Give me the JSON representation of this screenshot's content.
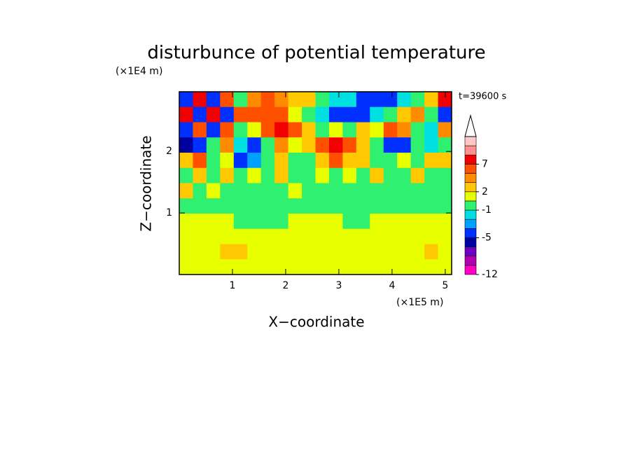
{
  "chart_data": {
    "type": "contourf",
    "title": "disturbunce of potential temperature",
    "annotation": "t=39600 s",
    "xlabel": "X−coordinate",
    "ylabel": "Z−coordinate",
    "xunit": "(×1E5 m)",
    "yunit": "(×1E4 m)",
    "xlim": [
      0,
      5.12
    ],
    "ylim": [
      0,
      2.97
    ],
    "xticks": [
      1,
      2,
      3,
      4,
      5
    ],
    "yticks": [
      1,
      2
    ],
    "levels": [
      -12,
      -10,
      -8,
      -6,
      -5,
      -3,
      -2,
      -1,
      1,
      2,
      4,
      5,
      7,
      9,
      11,
      13
    ],
    "colors": [
      "#ff00c0",
      "#b000b0",
      "#7000c0",
      "#0000a0",
      "#0030ff",
      "#00a0ff",
      "#00e0e0",
      "#30f070",
      "#e8ff00",
      "#ffc800",
      "#ff8c00",
      "#ff5000",
      "#f00000",
      "#ff9090",
      "#ffc8c8"
    ],
    "colorbar_ticks": [
      -12,
      -5,
      -1,
      2,
      7
    ],
    "z": [
      [
        -5,
        7,
        -5,
        5,
        0,
        4,
        6,
        4,
        3,
        2,
        0,
        -2,
        -2,
        -5,
        -5,
        -5,
        -2,
        0,
        2,
        7
      ],
      [
        7,
        -4,
        7,
        -4,
        5,
        6,
        6,
        6,
        1,
        0,
        -2,
        -5,
        -5,
        -5,
        -2,
        0,
        2,
        4,
        0,
        -5
      ],
      [
        -5,
        6,
        -5,
        5,
        0,
        1,
        6,
        7,
        5,
        2,
        0,
        1,
        0,
        2,
        1,
        5,
        4,
        0,
        -2,
        4
      ],
      [
        -6,
        -5,
        0,
        4,
        -2,
        -5,
        0,
        4,
        1,
        3,
        6,
        7,
        6,
        3,
        0,
        -5,
        -5,
        0,
        -2,
        0
      ],
      [
        2,
        5,
        0,
        1,
        -5,
        -3,
        0,
        3,
        0,
        0,
        2,
        5,
        3,
        2,
        0,
        0,
        1,
        0,
        2,
        2
      ],
      [
        0,
        2,
        0,
        2,
        0,
        1,
        0,
        2,
        0,
        0,
        1,
        0,
        1,
        0,
        2,
        0,
        0,
        2,
        0,
        0
      ],
      [
        2,
        0,
        1,
        0,
        0,
        0,
        0,
        0,
        1,
        0,
        0,
        0,
        0,
        0,
        0,
        0,
        0,
        0,
        0,
        0
      ],
      [
        0,
        0,
        0,
        0,
        0,
        0,
        0,
        0,
        0,
        0,
        0,
        0,
        0,
        0,
        0,
        0,
        0,
        0,
        0,
        0
      ],
      [
        1,
        1,
        1,
        1,
        0,
        0,
        0,
        0,
        1,
        1,
        1,
        1,
        0,
        0,
        1,
        1,
        1,
        1,
        1,
        1
      ],
      [
        1,
        1,
        1,
        1,
        1,
        1,
        1,
        1,
        1,
        1,
        1,
        1,
        1,
        1,
        1,
        1,
        1,
        1,
        1,
        1
      ],
      [
        1,
        1,
        1,
        2,
        2,
        1,
        1,
        1,
        1,
        1,
        1,
        1,
        1,
        1,
        1,
        1,
        1,
        1,
        2,
        1
      ],
      [
        1,
        1,
        1,
        1,
        1,
        1,
        1,
        1,
        1,
        1,
        1,
        1,
        1,
        1,
        1,
        1,
        1,
        1,
        1,
        1
      ]
    ]
  }
}
